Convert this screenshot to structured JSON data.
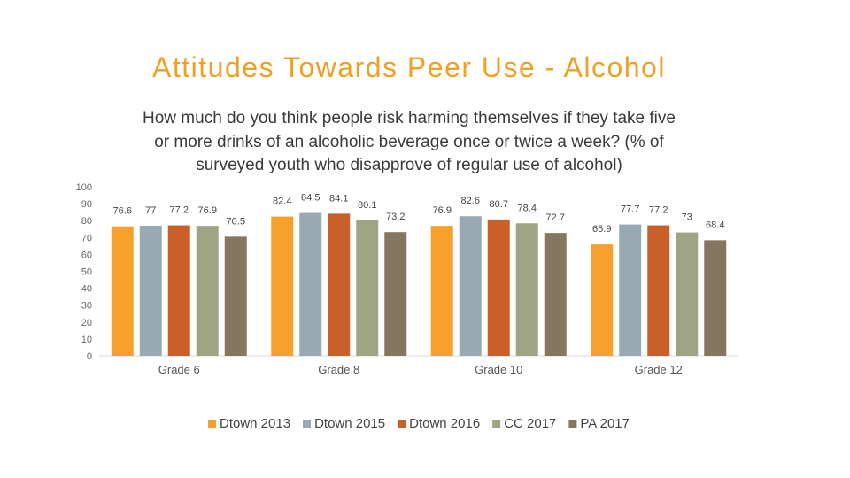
{
  "slide": {
    "title": "Attitudes Towards Peer Use - Alcohol"
  },
  "colors": {
    "Dtown 2013": "#f5a12c",
    "Dtown 2015": "#97a9b3",
    "Dtown 2016": "#c9602a",
    "CC 2017": "#9ea585",
    "PA 2017": "#857660"
  },
  "chart_data": {
    "type": "bar",
    "title": "How much do you think people risk harming themselves if they take five or more drinks of an alcoholic beverage once or twice a week? (% of surveyed youth who disapprove of regular use of alcohol)",
    "xlabel": "",
    "ylabel": "",
    "ylim": [
      0,
      100
    ],
    "yticks": [
      0,
      10,
      20,
      30,
      40,
      50,
      60,
      70,
      80,
      90,
      100
    ],
    "grid": false,
    "legend_position": "bottom",
    "categories": [
      "Grade 6",
      "Grade 8",
      "Grade 10",
      "Grade 12"
    ],
    "series": [
      {
        "name": "Dtown 2013",
        "values": [
          76.6,
          82.4,
          76.9,
          65.9
        ]
      },
      {
        "name": "Dtown 2015",
        "values": [
          77,
          84.5,
          82.6,
          77.7
        ]
      },
      {
        "name": "Dtown 2016",
        "values": [
          77.2,
          84.1,
          80.7,
          77.2
        ]
      },
      {
        "name": "CC 2017",
        "values": [
          76.9,
          80.1,
          78.4,
          73
        ]
      },
      {
        "name": "PA 2017",
        "values": [
          70.5,
          73.2,
          72.7,
          68.4
        ]
      }
    ]
  }
}
